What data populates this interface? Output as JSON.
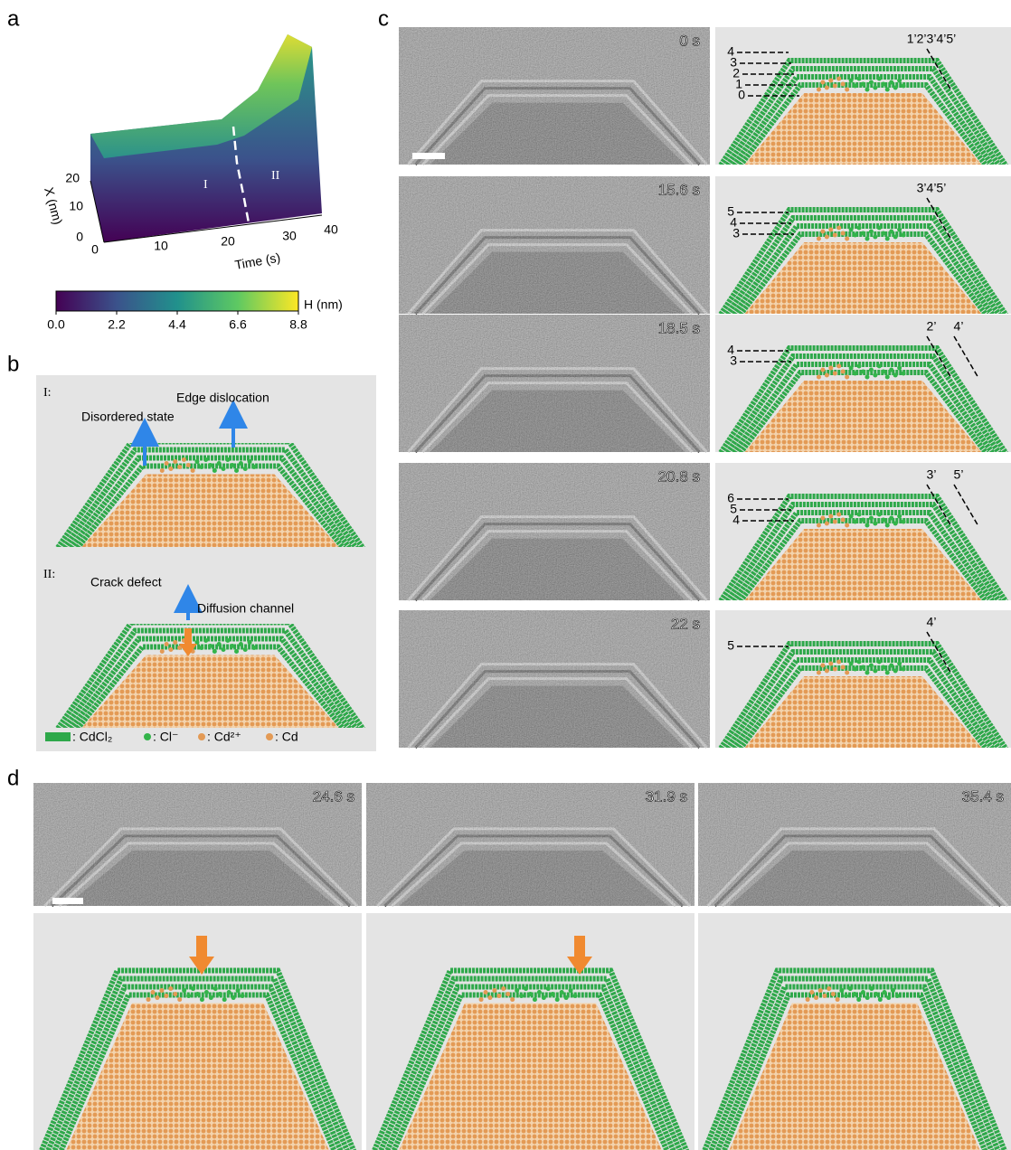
{
  "panel_labels": [
    "a",
    "b",
    "c",
    "d"
  ],
  "panel_a": {
    "x_axis_label": "X (nm)",
    "time_axis_label": "Time (s)",
    "x_ticks": [
      "0",
      "10",
      "20"
    ],
    "time_ticks": [
      "0",
      "10",
      "20",
      "30",
      "40"
    ],
    "regions": [
      "I",
      "II"
    ],
    "colorbar": {
      "label": "H (nm)",
      "ticks": [
        "0.0",
        "2.2",
        "4.4",
        "6.6",
        "8.8"
      ]
    }
  },
  "panel_b": {
    "stages": [
      {
        "label": "I:",
        "annotations": [
          "Disordered state",
          "Edge dislocation"
        ]
      },
      {
        "label": "II:",
        "annotations": [
          "Crack defect",
          "Diffusion channel"
        ]
      }
    ],
    "legend": [
      ": CdCl₂",
      ": Cl⁻",
      ": Cd²⁺",
      ": Cd"
    ]
  },
  "panel_c": {
    "frames": [
      {
        "time": "0 s",
        "left_labels": [
          "4",
          "3",
          "2",
          "1",
          "0"
        ],
        "right_labels": [
          "1’2’3’4’5’"
        ]
      },
      {
        "time": "15.6 s",
        "left_labels": [
          "5",
          "4",
          "3"
        ],
        "right_labels": [
          "3’4’5’"
        ]
      },
      {
        "time": "18.5 s",
        "left_labels": [
          "4",
          "3"
        ],
        "right_labels": [
          "2’",
          "4’"
        ]
      },
      {
        "time": "20.8 s",
        "left_labels": [
          "6",
          "5",
          "4"
        ],
        "right_labels": [
          "3’",
          "5’"
        ]
      },
      {
        "time": "22 s",
        "left_labels": [
          "5"
        ],
        "right_labels": [
          "4’"
        ]
      }
    ]
  },
  "panel_d": {
    "frames": [
      {
        "time": "24.6 s"
      },
      {
        "time": "31.9 s"
      },
      {
        "time": "35.4 s"
      }
    ]
  }
}
